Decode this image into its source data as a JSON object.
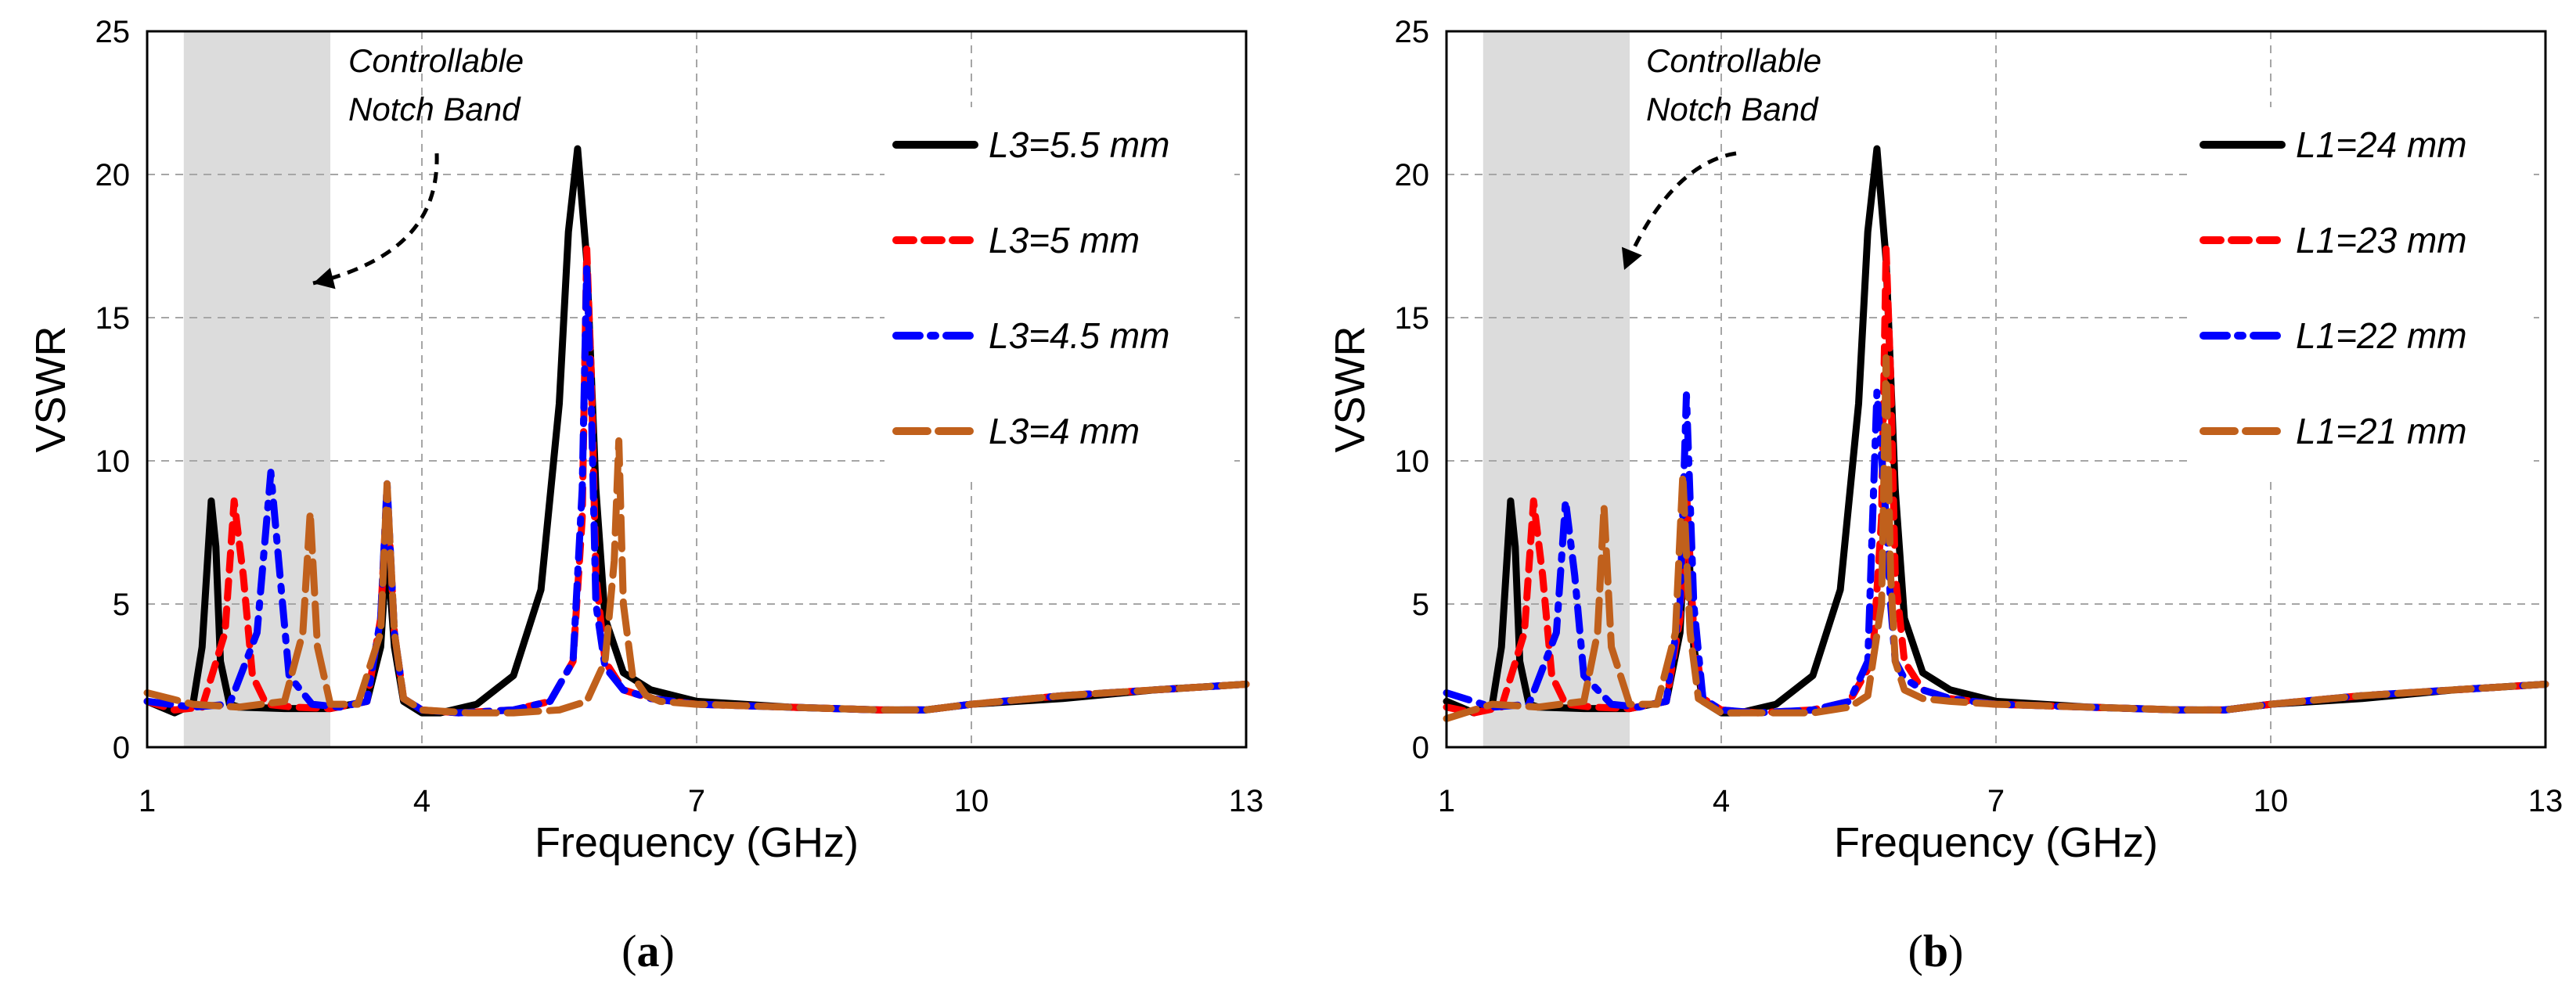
{
  "chart_data": [
    {
      "id": "a",
      "type": "line",
      "caption_letter": "a",
      "xlabel": "Frequency (GHz)",
      "ylabel": "VSWR",
      "xlim": [
        1,
        13
      ],
      "ylim": [
        0,
        25
      ],
      "xticks": [
        1,
        4,
        7,
        10,
        13
      ],
      "yticks": [
        0,
        5,
        10,
        15,
        20,
        25
      ],
      "grid": true,
      "shaded_band": [
        1.4,
        3.0
      ],
      "annotation": {
        "lines": [
          "Controllable",
          "Notch Band"
        ]
      },
      "legend_position": "top-right",
      "series": [
        {
          "name": "L3=5.5 mm",
          "color": "#000000",
          "dash": "solid",
          "x": [
            1.0,
            1.3,
            1.5,
            1.6,
            1.7,
            1.75,
            1.8,
            1.9,
            2.0,
            2.5,
            3.0,
            3.4,
            3.55,
            3.62,
            3.7,
            3.8,
            4.0,
            4.2,
            4.6,
            5.0,
            5.3,
            5.5,
            5.6,
            5.7,
            5.8,
            5.9,
            6.0,
            6.2,
            6.5,
            7.0,
            8.0,
            9.0,
            9.5,
            10.0,
            11.0,
            12.0,
            13.0
          ],
          "y": [
            1.6,
            1.2,
            1.5,
            3.5,
            8.6,
            7.0,
            3.0,
            1.5,
            1.4,
            1.35,
            1.35,
            1.6,
            3.5,
            7.0,
            3.5,
            1.6,
            1.2,
            1.2,
            1.5,
            2.5,
            5.5,
            12.0,
            18.0,
            20.9,
            17.0,
            9.0,
            4.5,
            2.6,
            2.0,
            1.6,
            1.4,
            1.3,
            1.3,
            1.5,
            1.7,
            2.0,
            2.2
          ]
        },
        {
          "name": "L3=5 mm",
          "color": "#ff0000",
          "dash": "dash",
          "x": [
            1.0,
            1.3,
            1.6,
            1.85,
            1.95,
            2.05,
            2.15,
            2.3,
            2.6,
            3.0,
            3.4,
            3.55,
            3.62,
            3.7,
            3.8,
            4.0,
            4.4,
            5.0,
            5.4,
            5.65,
            5.75,
            5.8,
            5.85,
            5.9,
            6.0,
            6.2,
            6.5,
            7.0,
            8.0,
            9.0,
            9.5,
            10.0,
            11.0,
            12.0,
            13.0
          ],
          "y": [
            1.6,
            1.3,
            1.4,
            4.0,
            8.6,
            6.0,
            2.5,
            1.5,
            1.4,
            1.35,
            1.6,
            4.5,
            9.0,
            4.0,
            1.7,
            1.3,
            1.2,
            1.3,
            1.6,
            3.0,
            8.0,
            17.4,
            13.0,
            6.0,
            3.0,
            2.0,
            1.7,
            1.5,
            1.4,
            1.3,
            1.3,
            1.5,
            1.8,
            2.0,
            2.2
          ]
        },
        {
          "name": "L3=4.5 mm",
          "color": "#0000ff",
          "dash": "dashdot",
          "x": [
            1.0,
            1.5,
            1.9,
            2.2,
            2.35,
            2.45,
            2.55,
            2.8,
            3.1,
            3.4,
            3.55,
            3.62,
            3.7,
            3.8,
            4.0,
            4.4,
            5.0,
            5.4,
            5.65,
            5.75,
            5.8,
            5.85,
            5.9,
            6.0,
            6.2,
            6.5,
            7.0,
            8.0,
            9.0,
            9.5,
            10.0,
            11.0,
            12.0,
            13.0
          ],
          "y": [
            1.6,
            1.4,
            1.5,
            4.0,
            9.6,
            6.0,
            2.5,
            1.5,
            1.4,
            1.6,
            4.5,
            9.2,
            4.0,
            1.7,
            1.3,
            1.2,
            1.3,
            1.6,
            3.0,
            9.0,
            16.8,
            12.0,
            5.0,
            2.8,
            2.0,
            1.7,
            1.5,
            1.4,
            1.3,
            1.3,
            1.5,
            1.8,
            2.0,
            2.2
          ]
        },
        {
          "name": "L3=4 mm",
          "color": "#c0601c",
          "dash": "longdash",
          "x": [
            1.0,
            1.5,
            2.0,
            2.5,
            2.7,
            2.78,
            2.86,
            3.0,
            3.3,
            3.55,
            3.62,
            3.7,
            3.8,
            4.0,
            4.5,
            5.0,
            5.5,
            5.8,
            6.0,
            6.1,
            6.15,
            6.2,
            6.3,
            6.45,
            6.6,
            7.0,
            8.0,
            9.0,
            9.5,
            10.0,
            11.0,
            12.0,
            13.0
          ],
          "y": [
            1.9,
            1.5,
            1.4,
            1.6,
            4.0,
            8.2,
            3.5,
            1.5,
            1.5,
            4.0,
            9.2,
            4.0,
            1.7,
            1.3,
            1.2,
            1.2,
            1.3,
            1.6,
            3.0,
            6.5,
            10.7,
            5.0,
            2.5,
            1.8,
            1.6,
            1.5,
            1.4,
            1.3,
            1.3,
            1.5,
            1.8,
            2.0,
            2.2
          ]
        }
      ]
    },
    {
      "id": "b",
      "type": "line",
      "caption_letter": "b",
      "xlabel": "Frequency (GHz)",
      "ylabel": "VSWR",
      "xlim": [
        1,
        13
      ],
      "ylim": [
        0,
        25
      ],
      "xticks": [
        1,
        4,
        7,
        10,
        13
      ],
      "yticks": [
        0,
        5,
        10,
        15,
        20,
        25
      ],
      "grid": true,
      "shaded_band": [
        1.4,
        3.0
      ],
      "annotation": {
        "lines": [
          "Controllable",
          "Notch Band"
        ]
      },
      "legend_position": "top-right",
      "series": [
        {
          "name": "L1=24 mm",
          "color": "#000000",
          "dash": "solid",
          "x": [
            1.0,
            1.3,
            1.5,
            1.6,
            1.7,
            1.75,
            1.8,
            1.9,
            2.0,
            2.5,
            3.0,
            3.4,
            3.55,
            3.62,
            3.7,
            3.8,
            4.0,
            4.2,
            4.6,
            5.0,
            5.3,
            5.5,
            5.6,
            5.7,
            5.8,
            5.9,
            6.0,
            6.2,
            6.5,
            7.0,
            8.0,
            9.0,
            9.5,
            10.0,
            11.0,
            12.0,
            13.0
          ],
          "y": [
            1.6,
            1.2,
            1.5,
            3.5,
            8.6,
            7.0,
            3.0,
            1.5,
            1.4,
            1.35,
            1.35,
            1.6,
            4.0,
            8.5,
            3.5,
            1.6,
            1.2,
            1.2,
            1.5,
            2.5,
            5.5,
            12.0,
            18.0,
            20.9,
            17.0,
            9.0,
            4.5,
            2.6,
            2.0,
            1.6,
            1.4,
            1.3,
            1.3,
            1.5,
            1.7,
            2.0,
            2.2
          ]
        },
        {
          "name": "L1=23 mm",
          "color": "#ff0000",
          "dash": "dash",
          "x": [
            1.0,
            1.3,
            1.6,
            1.85,
            1.95,
            2.05,
            2.15,
            2.3,
            2.6,
            3.0,
            3.4,
            3.55,
            3.62,
            3.7,
            3.8,
            4.0,
            4.4,
            5.0,
            5.4,
            5.65,
            5.75,
            5.8,
            5.85,
            5.9,
            6.0,
            6.2,
            6.5,
            7.0,
            8.0,
            9.0,
            9.5,
            10.0,
            11.0,
            12.0,
            13.0
          ],
          "y": [
            1.4,
            1.2,
            1.4,
            4.0,
            8.6,
            6.0,
            2.5,
            1.5,
            1.4,
            1.35,
            1.6,
            4.5,
            9.0,
            4.0,
            1.7,
            1.3,
            1.2,
            1.3,
            1.6,
            3.0,
            8.0,
            17.4,
            13.0,
            6.0,
            3.0,
            2.0,
            1.7,
            1.5,
            1.4,
            1.3,
            1.3,
            1.5,
            1.8,
            2.0,
            2.2
          ]
        },
        {
          "name": "L1=22 mm",
          "color": "#0000ff",
          "dash": "dashdot",
          "x": [
            1.0,
            1.5,
            1.9,
            2.2,
            2.3,
            2.4,
            2.5,
            2.8,
            3.1,
            3.4,
            3.55,
            3.62,
            3.7,
            3.8,
            4.0,
            4.4,
            5.0,
            5.4,
            5.6,
            5.7,
            5.8,
            5.85,
            5.9,
            6.0,
            6.2,
            6.5,
            7.0,
            8.0,
            9.0,
            9.5,
            10.0,
            11.0,
            12.0,
            13.0
          ],
          "y": [
            1.9,
            1.4,
            1.5,
            4.0,
            8.6,
            6.0,
            2.5,
            1.5,
            1.4,
            1.6,
            5.0,
            12.3,
            5.0,
            1.7,
            1.3,
            1.2,
            1.3,
            1.6,
            3.0,
            12.4,
            8.0,
            5.0,
            3.0,
            2.4,
            2.0,
            1.7,
            1.5,
            1.4,
            1.3,
            1.3,
            1.5,
            1.8,
            2.0,
            2.2
          ]
        },
        {
          "name": "L1=21 mm",
          "color": "#c0601c",
          "dash": "longdash",
          "x": [
            1.0,
            1.5,
            2.0,
            2.5,
            2.65,
            2.72,
            2.8,
            3.0,
            3.3,
            3.5,
            3.58,
            3.66,
            3.75,
            4.0,
            4.5,
            5.0,
            5.4,
            5.6,
            5.75,
            5.8,
            5.85,
            5.9,
            6.0,
            6.2,
            6.5,
            7.0,
            8.0,
            9.0,
            9.5,
            10.0,
            11.0,
            12.0,
            13.0
          ],
          "y": [
            1.0,
            1.5,
            1.4,
            1.6,
            4.0,
            8.4,
            3.5,
            1.5,
            1.5,
            4.0,
            9.5,
            4.0,
            1.7,
            1.2,
            1.2,
            1.2,
            1.4,
            1.8,
            5.0,
            13.6,
            6.0,
            3.0,
            2.0,
            1.7,
            1.6,
            1.5,
            1.4,
            1.3,
            1.3,
            1.5,
            1.8,
            2.0,
            2.2
          ]
        }
      ]
    }
  ]
}
